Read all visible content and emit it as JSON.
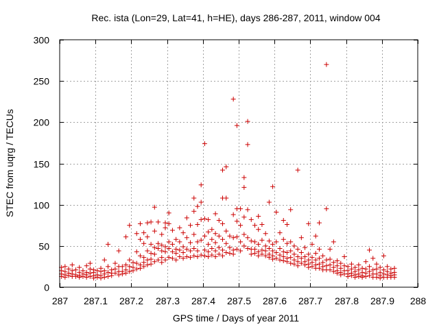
{
  "chart_data": {
    "type": "scatter",
    "title": "Rec. ista (Lon=29, Lat=41, h=HE), days 286-287, 2011, window 004",
    "xlabel": "GPS time / Days of year 2011",
    "ylabel": "STEC from uqrg / TECUs",
    "xlim": [
      287,
      288
    ],
    "ylim": [
      0,
      300
    ],
    "x_ticks": [
      287,
      287.1,
      287.2,
      287.3,
      287.4,
      287.5,
      287.6,
      287.7,
      287.8,
      287.9,
      288
    ],
    "x_tick_labels": [
      "287",
      "287.1",
      "287.2",
      "287.3",
      "287.4",
      "287.5",
      "287.6",
      "287.7",
      "287.8",
      "287.9",
      "288"
    ],
    "y_ticks": [
      0,
      50,
      100,
      150,
      200,
      250,
      300
    ],
    "y_tick_labels": [
      "0",
      "50",
      "100",
      "150",
      "200",
      "250",
      "300"
    ],
    "grid": true,
    "marker": "+",
    "color": "#cc0000",
    "points": [
      [
        287.005,
        24
      ],
      [
        287.005,
        20
      ],
      [
        287.005,
        16
      ],
      [
        287.005,
        13
      ],
      [
        287.015,
        25
      ],
      [
        287.015,
        19
      ],
      [
        287.015,
        15
      ],
      [
        287.015,
        12
      ],
      [
        287.025,
        22
      ],
      [
        287.025,
        17
      ],
      [
        287.025,
        14
      ],
      [
        287.035,
        27
      ],
      [
        287.035,
        20
      ],
      [
        287.035,
        16
      ],
      [
        287.035,
        13
      ],
      [
        287.045,
        21
      ],
      [
        287.045,
        15
      ],
      [
        287.045,
        13
      ],
      [
        287.055,
        24
      ],
      [
        287.055,
        18
      ],
      [
        287.055,
        14
      ],
      [
        287.055,
        12
      ],
      [
        287.065,
        20
      ],
      [
        287.065,
        16
      ],
      [
        287.065,
        13
      ],
      [
        287.075,
        26
      ],
      [
        287.075,
        18
      ],
      [
        287.075,
        15
      ],
      [
        287.075,
        12
      ],
      [
        287.085,
        29
      ],
      [
        287.085,
        22
      ],
      [
        287.085,
        17
      ],
      [
        287.085,
        13
      ],
      [
        287.095,
        21
      ],
      [
        287.095,
        18
      ],
      [
        287.095,
        14
      ],
      [
        287.095,
        11
      ],
      [
        287.105,
        20
      ],
      [
        287.105,
        15
      ],
      [
        287.105,
        12
      ],
      [
        287.115,
        23
      ],
      [
        287.115,
        19
      ],
      [
        287.115,
        14
      ],
      [
        287.115,
        11
      ],
      [
        287.125,
        33
      ],
      [
        287.125,
        20
      ],
      [
        287.125,
        16
      ],
      [
        287.125,
        12
      ],
      [
        287.135,
        52
      ],
      [
        287.135,
        25
      ],
      [
        287.135,
        18
      ],
      [
        287.135,
        13
      ],
      [
        287.145,
        21
      ],
      [
        287.145,
        17
      ],
      [
        287.145,
        14
      ],
      [
        287.155,
        29
      ],
      [
        287.155,
        22
      ],
      [
        287.155,
        17
      ],
      [
        287.165,
        44
      ],
      [
        287.165,
        25
      ],
      [
        287.165,
        19
      ],
      [
        287.165,
        15
      ],
      [
        287.175,
        25
      ],
      [
        287.175,
        19
      ],
      [
        287.175,
        16
      ],
      [
        287.185,
        61
      ],
      [
        287.185,
        27
      ],
      [
        287.185,
        21
      ],
      [
        287.185,
        17
      ],
      [
        287.195,
        75
      ],
      [
        287.195,
        33
      ],
      [
        287.195,
        25
      ],
      [
        287.195,
        19
      ],
      [
        287.205,
        30
      ],
      [
        287.205,
        24
      ],
      [
        287.205,
        20
      ],
      [
        287.215,
        65
      ],
      [
        287.215,
        43
      ],
      [
        287.215,
        29
      ],
      [
        287.215,
        22
      ],
      [
        287.225,
        77
      ],
      [
        287.225,
        58
      ],
      [
        287.225,
        38
      ],
      [
        287.225,
        27
      ],
      [
        287.225,
        23
      ],
      [
        287.235,
        66
      ],
      [
        287.235,
        53
      ],
      [
        287.235,
        36
      ],
      [
        287.235,
        30
      ],
      [
        287.235,
        25
      ],
      [
        287.245,
        78
      ],
      [
        287.245,
        61
      ],
      [
        287.245,
        44
      ],
      [
        287.245,
        33
      ],
      [
        287.245,
        27
      ],
      [
        287.255,
        79
      ],
      [
        287.255,
        52
      ],
      [
        287.255,
        41
      ],
      [
        287.255,
        34
      ],
      [
        287.255,
        28
      ],
      [
        287.265,
        97
      ],
      [
        287.265,
        68
      ],
      [
        287.265,
        48
      ],
      [
        287.265,
        40
      ],
      [
        287.265,
        31
      ],
      [
        287.275,
        79
      ],
      [
        287.275,
        53
      ],
      [
        287.275,
        47
      ],
      [
        287.275,
        33
      ],
      [
        287.285,
        64
      ],
      [
        287.285,
        51
      ],
      [
        287.285,
        44
      ],
      [
        287.285,
        36
      ],
      [
        287.285,
        30
      ],
      [
        287.295,
        78
      ],
      [
        287.295,
        72
      ],
      [
        287.295,
        49
      ],
      [
        287.295,
        43
      ],
      [
        287.295,
        33
      ],
      [
        287.305,
        90
      ],
      [
        287.305,
        77
      ],
      [
        287.305,
        55
      ],
      [
        287.305,
        47
      ],
      [
        287.305,
        36
      ],
      [
        287.315,
        69
      ],
      [
        287.315,
        52
      ],
      [
        287.315,
        43
      ],
      [
        287.315,
        35
      ],
      [
        287.325,
        58
      ],
      [
        287.325,
        46
      ],
      [
        287.325,
        41
      ],
      [
        287.325,
        33
      ],
      [
        287.335,
        72
      ],
      [
        287.335,
        55
      ],
      [
        287.335,
        45
      ],
      [
        287.335,
        37
      ],
      [
        287.345,
        66
      ],
      [
        287.345,
        49
      ],
      [
        287.345,
        42
      ],
      [
        287.345,
        35
      ],
      [
        287.355,
        84
      ],
      [
        287.355,
        60
      ],
      [
        287.355,
        46
      ],
      [
        287.355,
        37
      ],
      [
        287.365,
        75
      ],
      [
        287.365,
        54
      ],
      [
        287.365,
        44
      ],
      [
        287.365,
        36
      ],
      [
        287.375,
        108
      ],
      [
        287.375,
        92
      ],
      [
        287.375,
        64
      ],
      [
        287.375,
        47
      ],
      [
        287.375,
        38
      ],
      [
        287.385,
        98
      ],
      [
        287.385,
        76
      ],
      [
        287.385,
        55
      ],
      [
        287.385,
        44
      ],
      [
        287.385,
        37
      ],
      [
        287.395,
        124
      ],
      [
        287.395,
        103
      ],
      [
        287.395,
        82
      ],
      [
        287.395,
        57
      ],
      [
        287.395,
        39
      ],
      [
        287.405,
        174
      ],
      [
        287.405,
        83
      ],
      [
        287.405,
        62
      ],
      [
        287.405,
        45
      ],
      [
        287.405,
        38
      ],
      [
        287.415,
        82
      ],
      [
        287.415,
        67
      ],
      [
        287.415,
        52
      ],
      [
        287.415,
        43
      ],
      [
        287.415,
        37
      ],
      [
        287.425,
        70
      ],
      [
        287.425,
        58
      ],
      [
        287.425,
        47
      ],
      [
        287.425,
        39
      ],
      [
        287.435,
        89
      ],
      [
        287.435,
        65
      ],
      [
        287.435,
        54
      ],
      [
        287.435,
        44
      ],
      [
        287.435,
        37
      ],
      [
        287.445,
        81
      ],
      [
        287.445,
        62
      ],
      [
        287.445,
        48
      ],
      [
        287.445,
        40
      ],
      [
        287.455,
        142
      ],
      [
        287.455,
        108
      ],
      [
        287.455,
        77
      ],
      [
        287.455,
        58
      ],
      [
        287.455,
        45
      ],
      [
        287.455,
        38
      ],
      [
        287.465,
        146
      ],
      [
        287.465,
        108
      ],
      [
        287.465,
        68
      ],
      [
        287.465,
        53
      ],
      [
        287.465,
        42
      ],
      [
        287.475,
        62
      ],
      [
        287.475,
        48
      ],
      [
        287.475,
        41
      ],
      [
        287.485,
        228
      ],
      [
        287.485,
        88
      ],
      [
        287.485,
        60
      ],
      [
        287.485,
        45
      ],
      [
        287.485,
        40
      ],
      [
        287.495,
        196
      ],
      [
        287.495,
        95
      ],
      [
        287.495,
        80
      ],
      [
        287.495,
        61
      ],
      [
        287.495,
        46
      ],
      [
        287.505,
        95
      ],
      [
        287.505,
        75
      ],
      [
        287.505,
        55
      ],
      [
        287.505,
        44
      ],
      [
        287.515,
        133
      ],
      [
        287.515,
        121
      ],
      [
        287.515,
        85
      ],
      [
        287.515,
        64
      ],
      [
        287.515,
        50
      ],
      [
        287.525,
        201
      ],
      [
        287.525,
        173
      ],
      [
        287.525,
        94
      ],
      [
        287.525,
        60
      ],
      [
        287.525,
        47
      ],
      [
        287.535,
        82
      ],
      [
        287.535,
        56
      ],
      [
        287.535,
        46
      ],
      [
        287.535,
        40
      ],
      [
        287.545,
        75
      ],
      [
        287.545,
        55
      ],
      [
        287.545,
        46
      ],
      [
        287.545,
        41
      ],
      [
        287.555,
        86
      ],
      [
        287.555,
        70
      ],
      [
        287.555,
        52
      ],
      [
        287.555,
        43
      ],
      [
        287.555,
        38
      ],
      [
        287.565,
        76
      ],
      [
        287.565,
        57
      ],
      [
        287.565,
        45
      ],
      [
        287.565,
        40
      ],
      [
        287.575,
        65
      ],
      [
        287.575,
        50
      ],
      [
        287.575,
        44
      ],
      [
        287.575,
        38
      ],
      [
        287.585,
        103
      ],
      [
        287.585,
        56
      ],
      [
        287.585,
        47
      ],
      [
        287.585,
        40
      ],
      [
        287.585,
        36
      ],
      [
        287.595,
        122
      ],
      [
        287.595,
        52
      ],
      [
        287.595,
        44
      ],
      [
        287.595,
        38
      ],
      [
        287.595,
        34
      ],
      [
        287.605,
        91
      ],
      [
        287.605,
        55
      ],
      [
        287.605,
        42
      ],
      [
        287.605,
        35
      ],
      [
        287.615,
        66
      ],
      [
        287.615,
        47
      ],
      [
        287.615,
        39
      ],
      [
        287.615,
        33
      ],
      [
        287.625,
        81
      ],
      [
        287.625,
        58
      ],
      [
        287.625,
        43
      ],
      [
        287.625,
        37
      ],
      [
        287.625,
        32
      ],
      [
        287.635,
        76
      ],
      [
        287.635,
        53
      ],
      [
        287.635,
        42
      ],
      [
        287.635,
        35
      ],
      [
        287.635,
        31
      ],
      [
        287.645,
        94
      ],
      [
        287.645,
        55
      ],
      [
        287.645,
        44
      ],
      [
        287.645,
        36
      ],
      [
        287.645,
        29
      ],
      [
        287.655,
        50
      ],
      [
        287.655,
        40
      ],
      [
        287.655,
        33
      ],
      [
        287.655,
        28
      ],
      [
        287.665,
        142
      ],
      [
        287.665,
        46
      ],
      [
        287.665,
        37
      ],
      [
        287.665,
        31
      ],
      [
        287.665,
        26
      ],
      [
        287.675,
        60
      ],
      [
        287.675,
        42
      ],
      [
        287.675,
        35
      ],
      [
        287.675,
        29
      ],
      [
        287.685,
        48
      ],
      [
        287.685,
        37
      ],
      [
        287.685,
        31
      ],
      [
        287.685,
        27
      ],
      [
        287.695,
        77
      ],
      [
        287.695,
        40
      ],
      [
        287.695,
        33
      ],
      [
        287.695,
        28
      ],
      [
        287.695,
        24
      ],
      [
        287.705,
        52
      ],
      [
        287.705,
        36
      ],
      [
        287.705,
        30
      ],
      [
        287.705,
        25
      ],
      [
        287.715,
        62
      ],
      [
        287.715,
        41
      ],
      [
        287.715,
        33
      ],
      [
        287.715,
        27
      ],
      [
        287.715,
        23
      ],
      [
        287.725,
        78
      ],
      [
        287.725,
        46
      ],
      [
        287.725,
        35
      ],
      [
        287.725,
        28
      ],
      [
        287.725,
        23
      ],
      [
        287.735,
        38
      ],
      [
        287.735,
        30
      ],
      [
        287.735,
        25
      ],
      [
        287.735,
        21
      ],
      [
        287.745,
        270
      ],
      [
        287.745,
        95
      ],
      [
        287.745,
        33
      ],
      [
        287.745,
        26
      ],
      [
        287.745,
        21
      ],
      [
        287.755,
        46
      ],
      [
        287.755,
        34
      ],
      [
        287.755,
        27
      ],
      [
        287.755,
        21
      ],
      [
        287.765,
        55
      ],
      [
        287.765,
        30
      ],
      [
        287.765,
        24
      ],
      [
        287.765,
        19
      ],
      [
        287.775,
        32
      ],
      [
        287.775,
        26
      ],
      [
        287.775,
        20
      ],
      [
        287.775,
        17
      ],
      [
        287.785,
        29
      ],
      [
        287.785,
        23
      ],
      [
        287.785,
        18
      ],
      [
        287.785,
        15
      ],
      [
        287.795,
        37
      ],
      [
        287.795,
        26
      ],
      [
        287.795,
        20
      ],
      [
        287.795,
        16
      ],
      [
        287.805,
        25
      ],
      [
        287.805,
        20
      ],
      [
        287.805,
        16
      ],
      [
        287.805,
        13
      ],
      [
        287.815,
        28
      ],
      [
        287.815,
        22
      ],
      [
        287.815,
        17
      ],
      [
        287.815,
        14
      ],
      [
        287.825,
        24
      ],
      [
        287.825,
        19
      ],
      [
        287.825,
        15
      ],
      [
        287.825,
        12
      ],
      [
        287.835,
        27
      ],
      [
        287.835,
        21
      ],
      [
        287.835,
        16
      ],
      [
        287.835,
        13
      ],
      [
        287.845,
        23
      ],
      [
        287.845,
        18
      ],
      [
        287.845,
        14
      ],
      [
        287.845,
        12
      ],
      [
        287.855,
        31
      ],
      [
        287.855,
        22
      ],
      [
        287.855,
        17
      ],
      [
        287.855,
        13
      ],
      [
        287.865,
        45
      ],
      [
        287.865,
        25
      ],
      [
        287.865,
        19
      ],
      [
        287.865,
        14
      ],
      [
        287.875,
        35
      ],
      [
        287.875,
        21
      ],
      [
        287.875,
        16
      ],
      [
        287.875,
        12
      ],
      [
        287.885,
        28
      ],
      [
        287.885,
        22
      ],
      [
        287.885,
        16
      ],
      [
        287.885,
        12
      ],
      [
        287.895,
        24
      ],
      [
        287.895,
        18
      ],
      [
        287.895,
        14
      ],
      [
        287.895,
        11
      ],
      [
        287.905,
        38
      ],
      [
        287.905,
        21
      ],
      [
        287.905,
        16
      ],
      [
        287.905,
        12
      ],
      [
        287.915,
        25
      ],
      [
        287.915,
        19
      ],
      [
        287.915,
        15
      ],
      [
        287.915,
        12
      ],
      [
        287.925,
        22
      ],
      [
        287.925,
        17
      ],
      [
        287.925,
        14
      ],
      [
        287.925,
        12
      ],
      [
        287.935,
        23
      ],
      [
        287.935,
        18
      ],
      [
        287.935,
        15
      ],
      [
        287.935,
        12
      ]
    ]
  }
}
